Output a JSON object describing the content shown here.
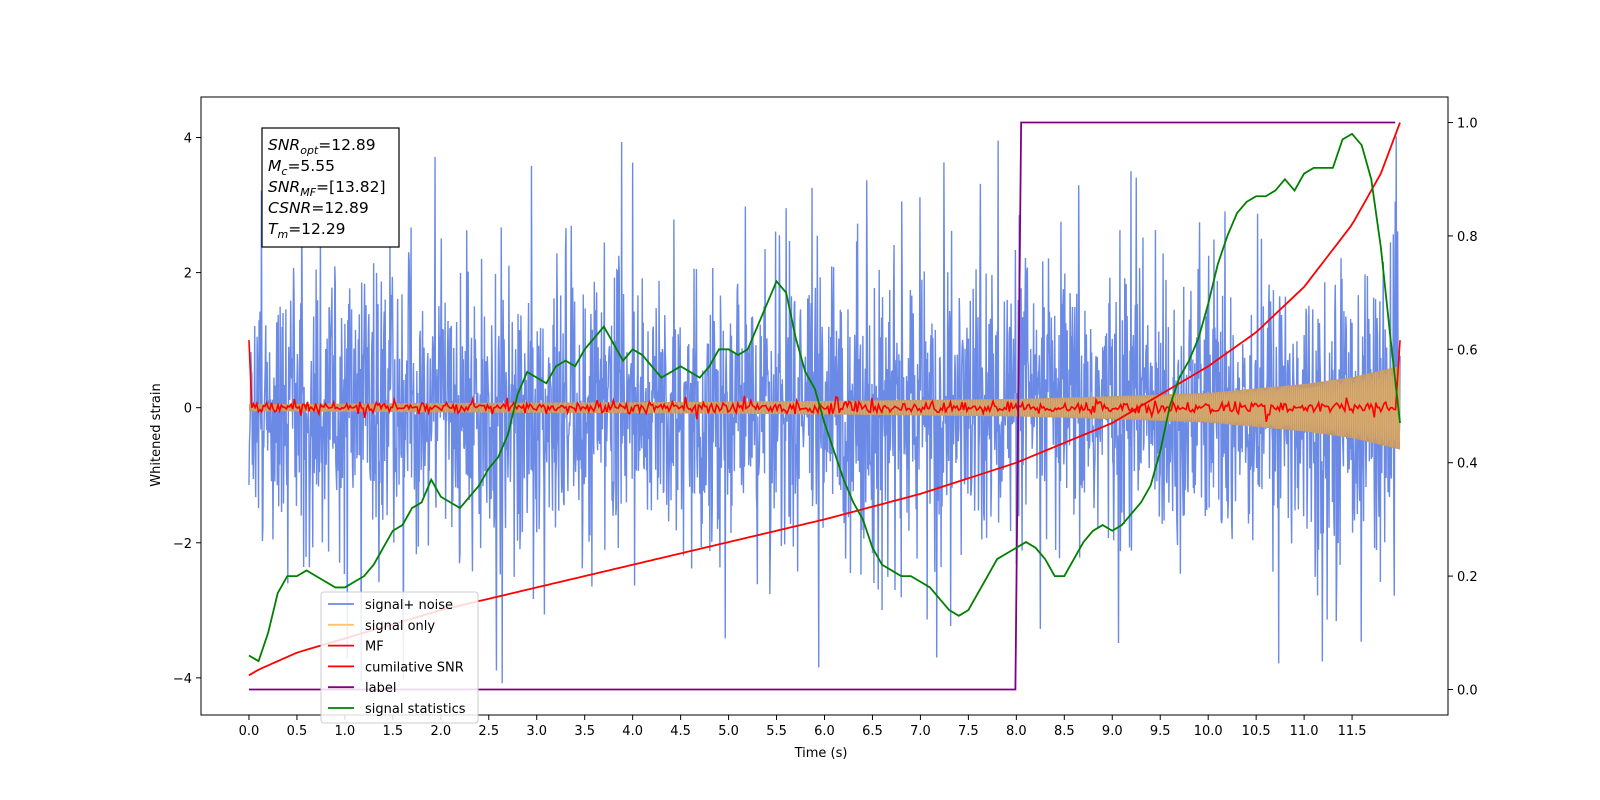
{
  "chart_data": {
    "type": "line",
    "xlabel": "Time (s)",
    "ylabel": "Whitened strain",
    "xlim": [
      -0.5,
      12.5
    ],
    "ylim": [
      -4.55,
      4.6
    ],
    "y2lim": [
      -0.045,
      1.045
    ],
    "x_ticks": [
      0.0,
      0.5,
      1.0,
      1.5,
      2.0,
      2.5,
      3.0,
      3.5,
      4.0,
      4.5,
      5.0,
      5.5,
      6.0,
      6.5,
      7.0,
      7.5,
      8.0,
      8.5,
      9.0,
      9.5,
      10.0,
      10.5,
      11.0,
      11.5
    ],
    "x_tick_labels": [
      "0.0",
      "0.5",
      "1.0",
      "1.5",
      "2.0",
      "2.5",
      "3.0",
      "3.5",
      "4.0",
      "4.5",
      "5.0",
      "5.5",
      "6.0",
      "6.5",
      "7.0",
      "7.5",
      "8.0",
      "8.5",
      "9.0",
      "9.5",
      "10.0",
      "10.5",
      "11.0",
      "11.5"
    ],
    "y_ticks": [
      -4,
      -2,
      0,
      2,
      4
    ],
    "y_tick_labels": [
      "−4",
      "−2",
      "0",
      "2",
      "4"
    ],
    "y2_ticks": [
      0.0,
      0.2,
      0.4,
      0.6,
      0.8,
      1.0
    ],
    "y2_tick_labels": [
      "0.0",
      "0.2",
      "0.4",
      "0.6",
      "0.8",
      "1.0"
    ],
    "grid": false,
    "legend_position": "lower-left",
    "legend": [
      "signal+ noise",
      "signal only",
      "MF",
      "cumilative SNR",
      "label",
      "signal statistics"
    ],
    "colors": {
      "noise": "#6b8ae6",
      "signal": "#fcc56b",
      "signal_fill": "#c29a6e",
      "mf": "#ff0000",
      "csnr": "#ff0000",
      "label": "#800080",
      "stats": "#008000"
    },
    "series": [
      {
        "name": "signal+ noise",
        "axis": "left",
        "t_range": [
          0.0,
          12.0
        ],
        "band_min": [
          -2.4,
          -2.3
        ],
        "band_max": [
          2.4,
          2.4
        ],
        "peak_max": 4.15,
        "peak_min": -4.1
      },
      {
        "name": "signal only",
        "axis": "left",
        "envelope": [
          [
            0.0,
            0.05
          ],
          [
            2.0,
            0.07
          ],
          [
            4.0,
            0.08
          ],
          [
            6.0,
            0.1
          ],
          [
            8.0,
            0.13
          ],
          [
            9.0,
            0.17
          ],
          [
            10.0,
            0.22
          ],
          [
            11.0,
            0.35
          ],
          [
            11.5,
            0.45
          ],
          [
            12.0,
            0.62
          ]
        ]
      },
      {
        "name": "MF",
        "axis": "left",
        "start": 1.0,
        "end": 1.0,
        "level": 0.0,
        "jitter": 0.08
      },
      {
        "name": "cumilative SNR",
        "axis": "right",
        "x": [
          0.0,
          0.1,
          0.5,
          1.0,
          2.0,
          3.0,
          4.0,
          5.0,
          6.0,
          7.0,
          8.0,
          9.0,
          9.5,
          10.0,
          10.5,
          11.0,
          11.5,
          11.8,
          12.0
        ],
        "y": [
          0.025,
          0.035,
          0.065,
          0.09,
          0.14,
          0.18,
          0.22,
          0.26,
          0.3,
          0.345,
          0.4,
          0.47,
          0.52,
          0.57,
          0.63,
          0.71,
          0.82,
          0.91,
          1.0
        ]
      },
      {
        "name": "label",
        "axis": "right",
        "x": [
          0.0,
          7.99,
          8.05,
          11.95
        ],
        "y": [
          0.0,
          0.0,
          1.0,
          1.0
        ]
      },
      {
        "name": "signal statistics",
        "axis": "right",
        "x": [
          0.0,
          0.1,
          0.2,
          0.3,
          0.4,
          0.5,
          0.6,
          0.7,
          0.8,
          0.9,
          1.0,
          1.1,
          1.2,
          1.3,
          1.4,
          1.5,
          1.6,
          1.7,
          1.8,
          1.9,
          2.0,
          2.1,
          2.2,
          2.3,
          2.4,
          2.5,
          2.6,
          2.7,
          2.8,
          2.9,
          3.0,
          3.1,
          3.2,
          3.3,
          3.4,
          3.5,
          3.6,
          3.7,
          3.8,
          3.9,
          4.0,
          4.1,
          4.2,
          4.3,
          4.4,
          4.5,
          4.6,
          4.7,
          4.8,
          4.9,
          5.0,
          5.1,
          5.2,
          5.3,
          5.4,
          5.5,
          5.6,
          5.7,
          5.8,
          5.9,
          6.0,
          6.1,
          6.2,
          6.3,
          6.4,
          6.5,
          6.6,
          6.7,
          6.8,
          6.9,
          7.0,
          7.1,
          7.2,
          7.3,
          7.4,
          7.5,
          7.6,
          7.7,
          7.8,
          7.9,
          8.0,
          8.1,
          8.2,
          8.3,
          8.4,
          8.5,
          8.6,
          8.7,
          8.8,
          8.9,
          9.0,
          9.1,
          9.2,
          9.3,
          9.4,
          9.5,
          9.6,
          9.7,
          9.8,
          9.9,
          10.0,
          10.1,
          10.2,
          10.3,
          10.4,
          10.5,
          10.6,
          10.7,
          10.8,
          10.9,
          11.0,
          11.1,
          11.2,
          11.3,
          11.4,
          11.5,
          11.6,
          11.7,
          11.8,
          11.9,
          12.0
        ],
        "y": [
          0.06,
          0.05,
          0.1,
          0.17,
          0.2,
          0.2,
          0.21,
          0.2,
          0.19,
          0.18,
          0.18,
          0.19,
          0.2,
          0.22,
          0.25,
          0.28,
          0.29,
          0.32,
          0.33,
          0.37,
          0.34,
          0.33,
          0.32,
          0.34,
          0.36,
          0.39,
          0.41,
          0.45,
          0.52,
          0.56,
          0.55,
          0.54,
          0.57,
          0.58,
          0.57,
          0.6,
          0.62,
          0.64,
          0.61,
          0.58,
          0.6,
          0.59,
          0.57,
          0.55,
          0.56,
          0.57,
          0.56,
          0.55,
          0.57,
          0.6,
          0.6,
          0.59,
          0.6,
          0.64,
          0.68,
          0.72,
          0.7,
          0.62,
          0.56,
          0.53,
          0.47,
          0.42,
          0.37,
          0.33,
          0.3,
          0.25,
          0.22,
          0.21,
          0.2,
          0.2,
          0.19,
          0.18,
          0.16,
          0.14,
          0.13,
          0.14,
          0.17,
          0.2,
          0.23,
          0.24,
          0.25,
          0.26,
          0.25,
          0.23,
          0.2,
          0.2,
          0.23,
          0.26,
          0.28,
          0.29,
          0.28,
          0.29,
          0.31,
          0.33,
          0.36,
          0.42,
          0.5,
          0.55,
          0.58,
          0.62,
          0.68,
          0.75,
          0.8,
          0.84,
          0.86,
          0.87,
          0.87,
          0.88,
          0.9,
          0.88,
          0.91,
          0.92,
          0.92,
          0.92,
          0.97,
          0.98,
          0.96,
          0.9,
          0.78,
          0.62,
          0.47
        ]
      }
    ]
  },
  "annotation": {
    "lines": [
      {
        "main": "SNR",
        "sub": "opt",
        "value": "=12.89"
      },
      {
        "main": "M",
        "sub": "c",
        "value": "=5.55"
      },
      {
        "main": "SNR",
        "sub": "MF",
        "value": "=[13.82]"
      },
      {
        "main": "CSNR",
        "sub": "",
        "value": "=12.89"
      },
      {
        "main": "T",
        "sub": "m",
        "value": "=12.29"
      }
    ]
  }
}
